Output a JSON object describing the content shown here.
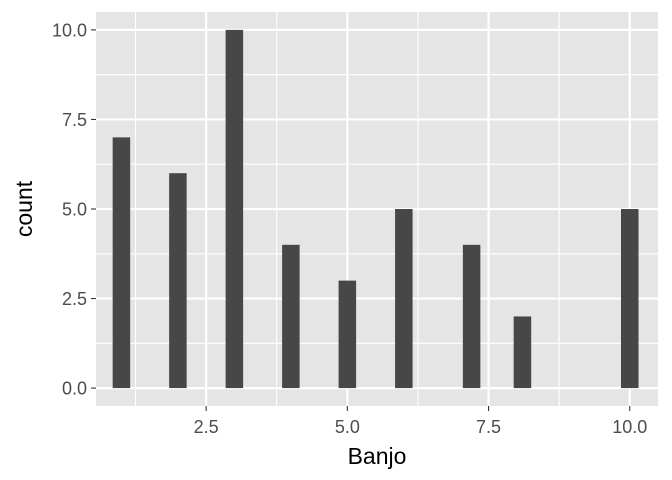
{
  "chart_data": {
    "type": "bar",
    "title": "",
    "xlabel": "Banjo",
    "ylabel": "count",
    "x": [
      1,
      2,
      3,
      4,
      5,
      6,
      7.2,
      8.1,
      10
    ],
    "values": [
      7,
      6,
      10,
      4,
      3,
      5,
      4,
      2,
      5
    ],
    "xlim": [
      0.55,
      10.5
    ],
    "ylim": [
      -0.5,
      10.5
    ],
    "x_ticks": [
      2.5,
      5.0,
      7.5,
      10.0
    ],
    "x_tick_labels": [
      "2.5",
      "5.0",
      "7.5",
      "10.0"
    ],
    "y_ticks": [
      0.0,
      2.5,
      5.0,
      7.5,
      10.0
    ],
    "y_tick_labels": [
      "0.0",
      "2.5",
      "5.0",
      "7.5",
      "10.0"
    ],
    "bar_width": 0.31,
    "grid": true,
    "legend": "none",
    "colors": {
      "panel": "#e5e5e5",
      "grid": "#ffffff",
      "bar": "#474747",
      "tick": "#333333"
    }
  }
}
